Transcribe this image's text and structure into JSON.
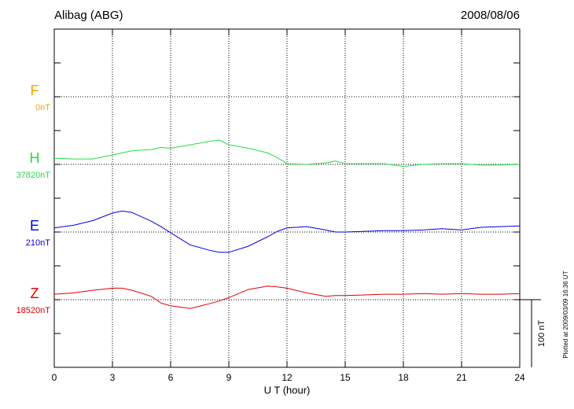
{
  "chart_data": {
    "type": "line",
    "title": "Alibag (ABG)",
    "date": "2008/08/06",
    "xlabel": "U T (hour)",
    "footnote": "Plotted at 2009/03/09 16:36 UT",
    "scale": {
      "value": 100,
      "label": "100 nT"
    },
    "xlim": [
      0,
      24
    ],
    "xticks": [
      0,
      3,
      6,
      9,
      12,
      15,
      18,
      21,
      24
    ],
    "grid": true,
    "x": [
      0,
      1,
      2,
      3,
      3.5,
      4,
      5,
      5.5,
      6,
      7,
      8,
      8.5,
      9,
      10,
      11,
      11.5,
      12,
      13,
      14,
      14.5,
      15,
      16,
      17,
      18,
      19,
      20,
      21,
      22,
      23,
      24
    ],
    "series": [
      {
        "name": "F",
        "color": "#f0a800",
        "baseline": {
          "value": 0,
          "label": "0nT"
        },
        "values": [
          null,
          null,
          null,
          null,
          null,
          null,
          null,
          null,
          null,
          null,
          null,
          null,
          null,
          null,
          null,
          null,
          null,
          null,
          null,
          null,
          null,
          null,
          null,
          null,
          null,
          null,
          null,
          null,
          null,
          null
        ]
      },
      {
        "name": "H",
        "color": "#22dd44",
        "baseline": {
          "value": 37820,
          "label": "37820nT"
        },
        "values": [
          37829,
          37828,
          37828,
          37834,
          37837,
          37840,
          37842,
          37845,
          37844,
          37849,
          37854,
          37856,
          37849,
          37844,
          37837,
          37830,
          37821,
          37820,
          37822,
          37825,
          37821,
          37821,
          37821,
          37817,
          37820,
          37821,
          37821,
          37819,
          37819,
          37820
        ]
      },
      {
        "name": "E",
        "color": "#0000dd",
        "baseline": {
          "value": 210,
          "label": "210nT"
        },
        "values": [
          216,
          220,
          227,
          238,
          241,
          239,
          226,
          218,
          209,
          191,
          183,
          180,
          180,
          189,
          203,
          211,
          216,
          218,
          213,
          210,
          210,
          211,
          212,
          212,
          213,
          215,
          213,
          217,
          218,
          219
        ]
      },
      {
        "name": "Z",
        "color": "#dd0000",
        "baseline": {
          "value": 18520,
          "label": "18520nT"
        },
        "values": [
          18528,
          18530,
          18534,
          18537,
          18537,
          18534,
          18525,
          18515,
          18511,
          18507,
          18514,
          18518,
          18523,
          18535,
          18540,
          18539,
          18537,
          18530,
          18525,
          18526,
          18526,
          18527,
          18528,
          18528,
          18529,
          18528,
          18529,
          18528,
          18528,
          18529
        ]
      }
    ]
  }
}
